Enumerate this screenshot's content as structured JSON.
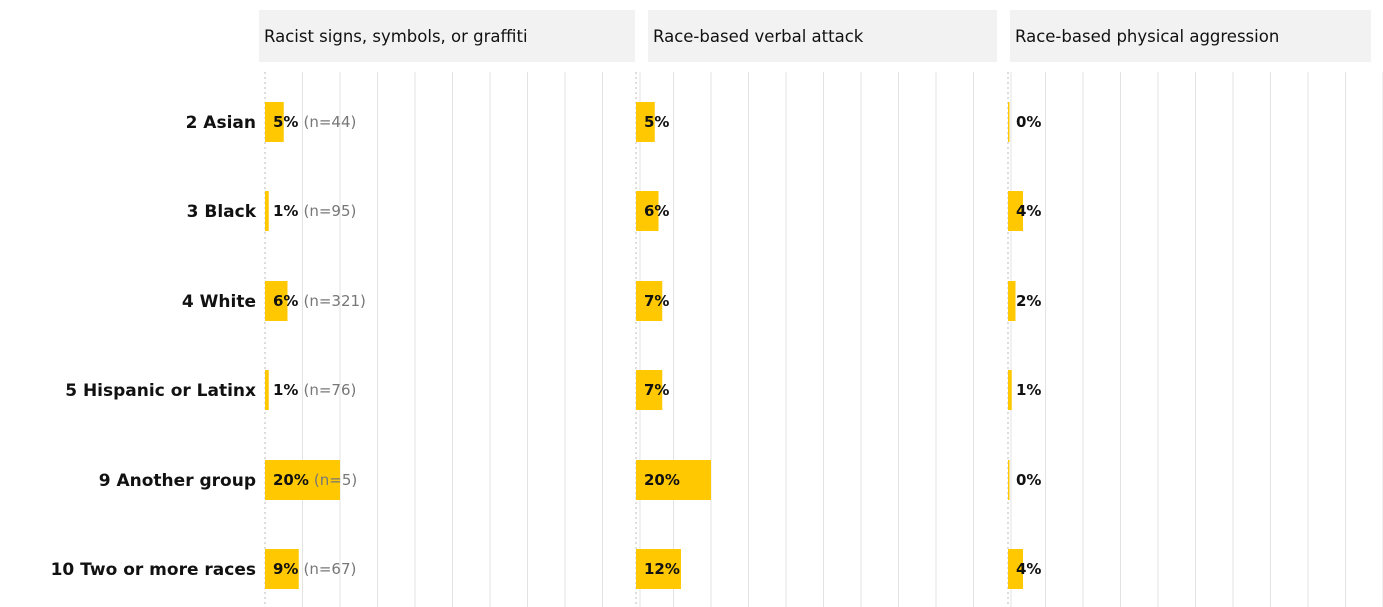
{
  "chart_data": {
    "type": "bar",
    "orientation": "horizontal",
    "categories": [
      "2 Asian",
      "3 Black",
      "4 White",
      "5 Hispanic or Latinx",
      "9 Another group",
      "10 Two or more races"
    ],
    "n_labels": [
      "(n=44)",
      "(n=95)",
      "(n=321)",
      "(n=76)",
      "(n=5)",
      "(n=67)"
    ],
    "series": [
      {
        "name": "Racist signs, symbols, or graffiti",
        "values": [
          5,
          1,
          6,
          1,
          20,
          9
        ],
        "labels": [
          "5%",
          "1%",
          "6%",
          "1%",
          "20%",
          "9%"
        ]
      },
      {
        "name": "Race-based verbal attack",
        "values": [
          5,
          6,
          7,
          7,
          20,
          12
        ],
        "labels": [
          "5%",
          "6%",
          "7%",
          "7%",
          "20%",
          "12%"
        ]
      },
      {
        "name": "Race-based physical aggression",
        "values": [
          0.4,
          4,
          2,
          1,
          0.4,
          4
        ],
        "labels": [
          "0%",
          "4%",
          "2%",
          "1%",
          "0%",
          "4%"
        ]
      }
    ],
    "xlim": [
      0,
      100
    ],
    "grid": true,
    "legend": "none",
    "colors": {
      "bar": "#FFC800",
      "gridline": "#E3E3E3",
      "title_bg": "#F2F2F2",
      "text": "#111111",
      "n_text": "#777777"
    }
  }
}
